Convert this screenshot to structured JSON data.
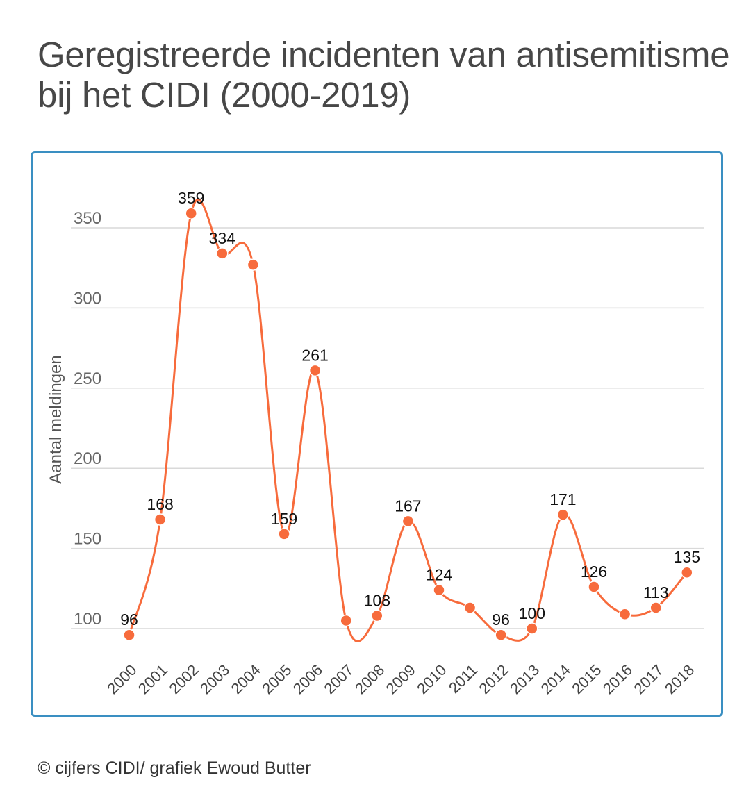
{
  "title": "Geregistreerde incidenten van antisemitisme bij het CIDI (2000-2019)",
  "credit": "© cijfers CIDI/ grafiek Ewoud Butter",
  "colors": {
    "line": "#f76b3c",
    "frame": "#3a8fc2",
    "grid": "#d9d9d9"
  },
  "chart_data": {
    "type": "line",
    "title": "Geregistreerde incidenten van antisemitisme bij het CIDI (2000-2019)",
    "xlabel": "",
    "ylabel": "Aantal meldingen",
    "categories": [
      "2000",
      "2001",
      "2002",
      "2003",
      "2004",
      "2005",
      "2006",
      "2007",
      "2008",
      "2009",
      "2010",
      "2011",
      "2012",
      "2013",
      "2014",
      "2015",
      "2016",
      "2017",
      "2018"
    ],
    "series": [
      {
        "values": [
          96,
          168,
          359,
          334,
          327,
          159,
          261,
          105,
          108,
          167,
          124,
          113,
          96,
          100,
          171,
          126,
          109,
          113,
          135
        ],
        "data_labels": [
          "96",
          "168",
          "359",
          "334",
          "",
          "159",
          "261",
          "",
          "108",
          "167",
          "124",
          "",
          "96",
          "100",
          "171",
          "126",
          "",
          "113",
          "135"
        ]
      }
    ],
    "yticks": [
      100,
      150,
      200,
      250,
      300,
      350
    ],
    "ylim": [
      76,
      390
    ],
    "grid": true,
    "smooth": true,
    "legend": "none"
  }
}
